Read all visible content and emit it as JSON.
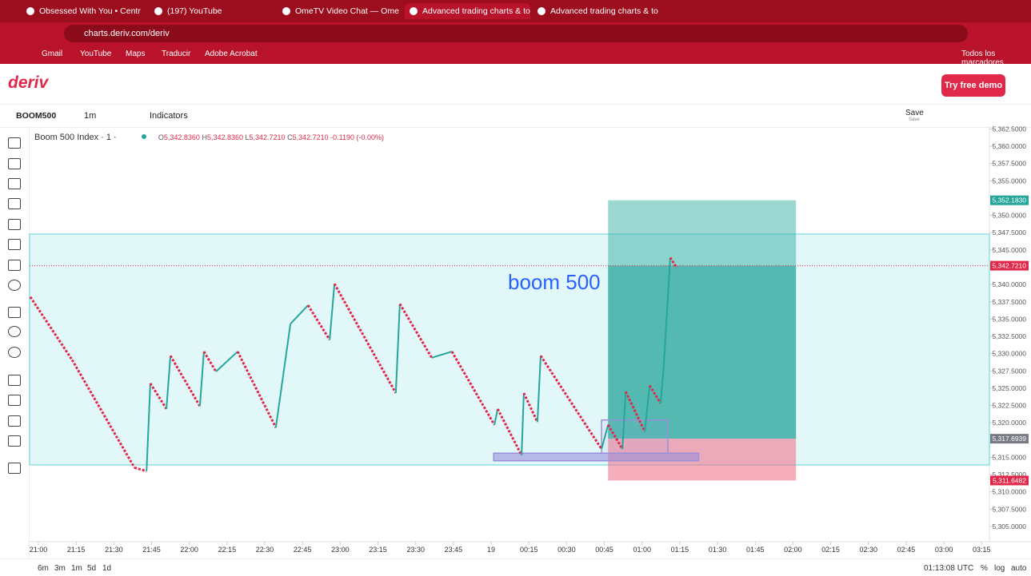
{
  "browser": {
    "tabs": [
      "Obsessed With You • Centr",
      "(197) YouTube",
      "OmeTV Video Chat — Ome",
      "Advanced trading charts & too",
      "Advanced trading charts & too"
    ],
    "url": "charts.deriv.com/deriv",
    "bookmarks": [
      "Gmail",
      "YouTube",
      "Maps",
      "Traducir",
      "Adobe Acrobat"
    ],
    "all_bookmarks": "Todos los marcadores"
  },
  "app": {
    "logo": "deriv",
    "demo_button": "Try free demo",
    "symbol": "BOOM500",
    "interval": "1m",
    "indicators": "Indicators",
    "save": "Save",
    "save_sub": "Save"
  },
  "chart": {
    "legend_title": "Boom 500 Index · 1 ·",
    "ohlc_letters": [
      "O",
      "H",
      "L",
      "C"
    ],
    "ohlc_values": [
      "5,342.8360",
      "5,342.8360",
      "5,342.7210",
      "5,342.7210"
    ],
    "change": "-0.1190 (-0.00%)",
    "xlim": [
      -3.5,
      378.1
    ],
    "ylim": [
      5302.8,
      5362.9
    ],
    "xticks": [
      {
        "value": 0,
        "label": "21:00"
      },
      {
        "value": 15,
        "label": "21:15"
      },
      {
        "value": 30,
        "label": "21:30"
      },
      {
        "value": 45,
        "label": "21:45"
      },
      {
        "value": 60,
        "label": "22:00"
      },
      {
        "value": 75,
        "label": "22:15"
      },
      {
        "value": 90,
        "label": "22:30"
      },
      {
        "value": 105,
        "label": "22:45"
      },
      {
        "value": 120,
        "label": "23:00"
      },
      {
        "value": 135,
        "label": "23:15"
      },
      {
        "value": 150,
        "label": "23:30"
      },
      {
        "value": 165,
        "label": "23:45"
      },
      {
        "value": 180,
        "label": "19"
      },
      {
        "value": 195,
        "label": "00:15"
      },
      {
        "value": 210,
        "label": "00:30"
      },
      {
        "value": 225,
        "label": "00:45"
      },
      {
        "value": 240,
        "label": "01:00"
      },
      {
        "value": 255,
        "label": "01:15"
      },
      {
        "value": 270,
        "label": "01:30"
      },
      {
        "value": 285,
        "label": "01:45"
      },
      {
        "value": 300,
        "label": "02:00"
      },
      {
        "value": 315,
        "label": "02:15"
      },
      {
        "value": 330,
        "label": "02:30"
      },
      {
        "value": 345,
        "label": "02:45"
      },
      {
        "value": 360,
        "label": "03:00"
      },
      {
        "value": 375,
        "label": "03:15"
      }
    ],
    "yticks": [
      {
        "value": 5305,
        "label": "5,305.0000"
      },
      {
        "value": 5307.5,
        "label": "5,307.5000"
      },
      {
        "value": 5310,
        "label": "5,310.0000"
      },
      {
        "value": 5312.5,
        "label": "5,312.5000"
      },
      {
        "value": 5315,
        "label": "5,315.0000"
      },
      {
        "value": 5317.5,
        "label": "5,317.5000"
      },
      {
        "value": 5320,
        "label": "5,320.0000"
      },
      {
        "value": 5322.5,
        "label": "5,322.5000"
      },
      {
        "value": 5325,
        "label": "5,325.0000"
      },
      {
        "value": 5327.5,
        "label": "5,327.5000"
      },
      {
        "value": 5330,
        "label": "5,330.0000"
      },
      {
        "value": 5332.5,
        "label": "5,332.5000"
      },
      {
        "value": 5335,
        "label": "5,335.0000"
      },
      {
        "value": 5337.5,
        "label": "5,337.5000"
      },
      {
        "value": 5340,
        "label": "5,340.0000"
      },
      {
        "value": 5342.5,
        "label": "5,342.5000"
      },
      {
        "value": 5345,
        "label": "5,345.0000"
      },
      {
        "value": 5347.5,
        "label": "5,347.5000"
      },
      {
        "value": 5350,
        "label": "5,350.0000"
      },
      {
        "value": 5355,
        "label": "5,355.0000"
      },
      {
        "value": 5357.5,
        "label": "5,357.5000"
      },
      {
        "value": 5360,
        "label": "5,360.0000"
      },
      {
        "value": 5362.5,
        "label": "5,362.5000"
      }
    ],
    "price_path": {
      "x": [
        -3.2,
        13.4,
        38.2,
        43,
        44.5,
        50.9,
        52.5,
        64.2,
        65.8,
        70.6,
        79.2,
        94.4,
        100.2,
        107.2,
        115.8,
        117.7,
        142.1,
        143.7,
        156.4,
        164.4,
        181.3,
        182.6,
        192.1,
        193,
        198.4,
        199.7,
        223.9,
        226.5,
        232.2,
        233.5,
        241.1,
        243,
        247.4,
        248.7,
        251.2,
        253.8
      ],
      "values": [
        5338.2,
        5329.1,
        5313.5,
        5313,
        5325.7,
        5322,
        5329.7,
        5322.4,
        5330.3,
        5327.4,
        5330.3,
        5319.3,
        5334.3,
        5337,
        5332,
        5340.1,
        5324.3,
        5337.2,
        5329.4,
        5330.3,
        5319.7,
        5322,
        5315.3,
        5324.3,
        5320.1,
        5329.7,
        5316.2,
        5319.7,
        5316.2,
        5324.5,
        5318.7,
        5325.4,
        5322.8,
        5328.6,
        5343.9,
        5342.4
      ],
      "up_color": "#26a69a",
      "down_color": "#e0294a"
    },
    "band": {
      "high": 5347.3,
      "low": 5313.9,
      "color": "#5fd3da"
    },
    "position": {
      "x": [
        226.5,
        301.2
      ],
      "target": 5352.183,
      "current": 5342.721,
      "entry": 5317.6939,
      "stop": 5311.6482
    },
    "boxes": [
      {
        "x": [
          181,
          262.5
        ],
        "y": [
          5314.5,
          5315.6
        ]
      },
      {
        "x": [
          223.9,
          250.3
        ],
        "y": [
          5315.6,
          5320.4
        ]
      }
    ],
    "annotation": "boom 500",
    "price_tags": {
      "values": [
        5352.183,
        5342.721,
        5317.6939,
        5311.6482
      ],
      "value_labels": [
        "5,352.1830",
        "5,342.7210",
        "5,317.6939",
        "5,311.6482"
      ],
      "colors": [
        "#26a69a",
        "#e0294a",
        "#787b86",
        "#e0294a"
      ]
    }
  },
  "footer": {
    "ranges": [
      "6m",
      "3m",
      "1m",
      "5d",
      "1d"
    ],
    "clock": "01:13:08 UTC",
    "percent": "%",
    "log": "log",
    "auto": "auto"
  }
}
